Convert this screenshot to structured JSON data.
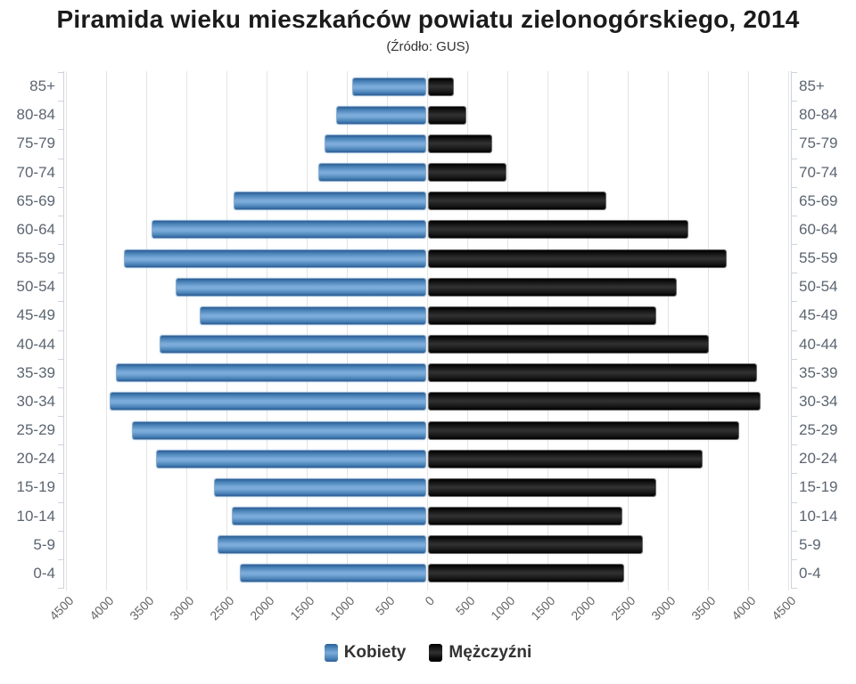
{
  "title": "Piramida wieku mieszkańców powiatu zielonogórskiego, 2014",
  "subtitle": "(Źródło: GUS)",
  "legend": {
    "items": [
      {
        "label": "Kobiety",
        "color": "#4f87bc"
      },
      {
        "label": "Mężczyźni",
        "color": "#141414"
      }
    ]
  },
  "chart_data": {
    "type": "bar",
    "variant": "population-pyramid",
    "title": "Piramida wieku mieszkańców powiatu zielonogórskiego, 2014",
    "subtitle": "(Źródło: GUS)",
    "xlabel": "",
    "ylabel": "",
    "grid": true,
    "legend_position": "bottom",
    "axis": {
      "max": 4500,
      "step": 500,
      "xlim": [
        -4500,
        4500
      ]
    },
    "tick_labels": [
      "4500",
      "4000",
      "3500",
      "3000",
      "2500",
      "2000",
      "1500",
      "1000",
      "500",
      "0",
      "500",
      "1000",
      "1500",
      "2000",
      "2500",
      "3000",
      "3500",
      "4000",
      "4500"
    ],
    "tick_values": [
      -4500,
      -4000,
      -3500,
      -3000,
      -2500,
      -2000,
      -1500,
      -1000,
      -500,
      0,
      500,
      1000,
      1500,
      2000,
      2500,
      3000,
      3500,
      4000,
      4500
    ],
    "categories": [
      "85+",
      "80-84",
      "75-79",
      "70-74",
      "65-69",
      "60-64",
      "55-59",
      "50-54",
      "45-49",
      "40-44",
      "35-39",
      "30-34",
      "25-29",
      "20-24",
      "15-19",
      "10-14",
      "5-9",
      "0-4"
    ],
    "series": [
      {
        "name": "Kobiety",
        "side": "left",
        "color": "#4f87bc",
        "values": [
          900,
          1100,
          1250,
          1325,
          2375,
          3400,
          3750,
          3100,
          2800,
          3300,
          3850,
          3925,
          3650,
          3350,
          2625,
          2400,
          2575,
          2300
        ]
      },
      {
        "name": "Mężczyźni",
        "side": "right",
        "color": "#141414",
        "values": [
          300,
          450,
          775,
          950,
          2200,
          3225,
          3700,
          3075,
          2825,
          3475,
          4075,
          4125,
          3850,
          3400,
          2825,
          2400,
          2650,
          2425
        ]
      }
    ]
  }
}
